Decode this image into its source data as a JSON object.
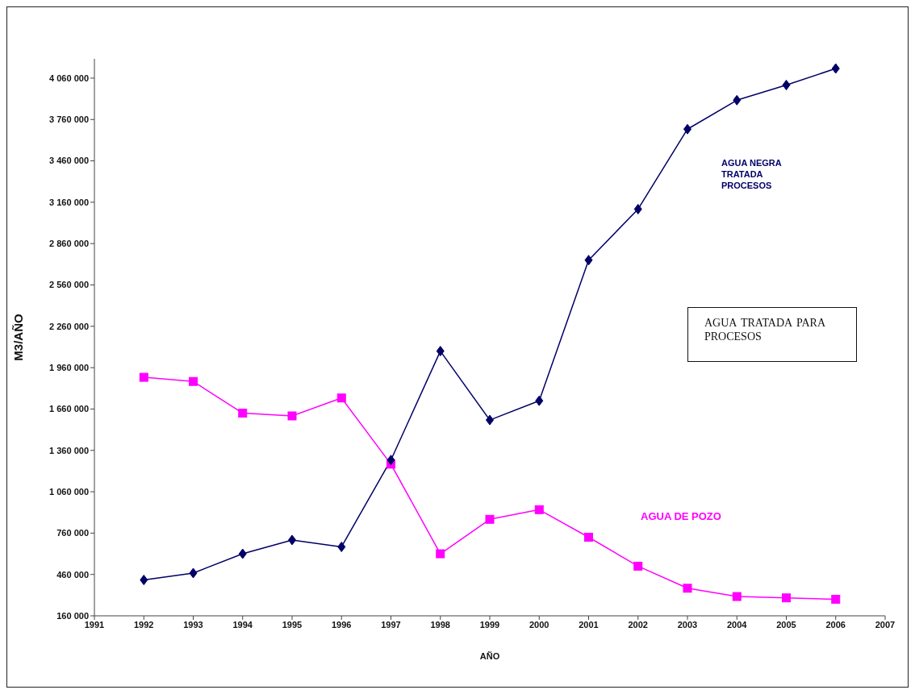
{
  "chart_data": {
    "type": "line",
    "xlabel": "AÑO",
    "ylabel": "M3/AÑO",
    "x": [
      1992,
      1993,
      1994,
      1995,
      1996,
      1997,
      1998,
      1999,
      2000,
      2001,
      2002,
      2003,
      2004,
      2005,
      2006
    ],
    "series": [
      {
        "name": "AGUA NEGRA TRATADA PROCESOS",
        "color": "#000066",
        "marker": "diamond",
        "values": [
          420000,
          470000,
          610000,
          710000,
          660000,
          1290000,
          2080000,
          1580000,
          1720000,
          2740000,
          3110000,
          3690000,
          3900000,
          4010000,
          4130000
        ]
      },
      {
        "name": "AGUA DE POZO",
        "color": "#ff00ff",
        "marker": "square",
        "values": [
          1890000,
          1860000,
          1630000,
          1610000,
          1740000,
          1260000,
          610000,
          860000,
          930000,
          730000,
          520000,
          360000,
          300000,
          290000,
          280000
        ]
      }
    ],
    "xlim": [
      1991,
      2007
    ],
    "xticks": [
      1991,
      1992,
      1993,
      1994,
      1995,
      1996,
      1997,
      1998,
      1999,
      2000,
      2001,
      2002,
      2003,
      2004,
      2005,
      2006,
      2007
    ],
    "ylim": [
      160000,
      4200000
    ],
    "yticks": [
      {
        "value": 160000,
        "label": "160 000"
      },
      {
        "value": 460000,
        "label": "460 000"
      },
      {
        "value": 760000,
        "label": "760 000"
      },
      {
        "value": 1060000,
        "label": "1 060 000"
      },
      {
        "value": 1360000,
        "label": "1 360 000"
      },
      {
        "value": 1660000,
        "label": "1 660 000"
      },
      {
        "value": 1960000,
        "label": "1 960 000"
      },
      {
        "value": 2260000,
        "label": "2 260 000"
      },
      {
        "value": 2560000,
        "label": "2 560 000"
      },
      {
        "value": 2860000,
        "label": "2 860 000"
      },
      {
        "value": 3160000,
        "label": "3 160 000"
      },
      {
        "value": 3460000,
        "label": "3 460 000"
      },
      {
        "value": 3760000,
        "label": "3 760 000"
      },
      {
        "value": 4060000,
        "label": "4 060 000"
      }
    ],
    "annotations": [
      "AGUA TRATADA PARA PROCESOS"
    ],
    "grid": false,
    "legend": false,
    "line_style": "solid"
  }
}
